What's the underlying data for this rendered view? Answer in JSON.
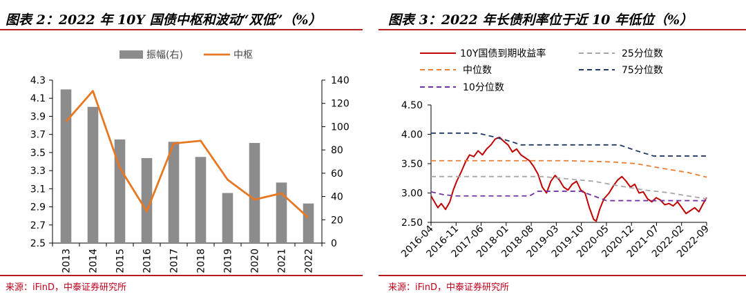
{
  "panels": {
    "left": {
      "title": "图表 2：2022 年 10Y 国债中枢和波动“双低”（%）",
      "source": "来源：iFinD，中泰证券研究所"
    },
    "right": {
      "title": "图表 3：2022 年长债利率位于近 10 年低位（%）",
      "source": "来源：iFinD，中泰证券研究所"
    }
  },
  "chart_data": [
    {
      "type": "bar+line",
      "title": "2022 年 10Y 国债中枢和波动“双低”（%）",
      "categories": [
        "2013",
        "2014",
        "2015",
        "2016",
        "2017",
        "2018",
        "2019",
        "2020",
        "2021",
        "2022"
      ],
      "series": [
        {
          "name": "振幅(右)",
          "kind": "bar",
          "axis": "right",
          "color": "#8c8c8c",
          "values": [
            132,
            117,
            89,
            73,
            87,
            74,
            43,
            86,
            52,
            34
          ]
        },
        {
          "name": "中枢",
          "kind": "line",
          "axis": "left",
          "color": "#e87722",
          "values": [
            3.84,
            4.18,
            3.33,
            2.85,
            3.6,
            3.63,
            3.2,
            2.98,
            3.05,
            2.78
          ]
        }
      ],
      "y_left": {
        "min": 2.5,
        "max": 4.3,
        "ticks": [
          "4.3",
          "4.1",
          "3.9",
          "3.7",
          "3.5",
          "3.3",
          "3.1",
          "2.9",
          "2.7",
          "2.5"
        ]
      },
      "y_right": {
        "min": 0,
        "max": 140,
        "ticks": [
          "140",
          "120",
          "100",
          "80",
          "60",
          "40",
          "20",
          "0"
        ]
      },
      "legend": [
        "振幅(右)",
        "中枢"
      ]
    },
    {
      "type": "line",
      "title": "2022 年长债利率位于近 10 年低位（%）",
      "x_range": [
        "2016-04",
        "2022-12"
      ],
      "x_ticks": [
        "2016-04",
        "2016-11",
        "2017-06",
        "2018-01",
        "2018-08",
        "2019-03",
        "2019-10",
        "2020-05",
        "2020-12",
        "2021-07",
        "2022-02",
        "2022-09"
      ],
      "y": {
        "min": 2.5,
        "max": 4.5,
        "ticks": [
          "4.50",
          "4.00",
          "3.50",
          "3.00",
          "2.50"
        ]
      },
      "legend": [
        "10Y国债到期收益率",
        "25分位数",
        "中位数",
        "75分位数",
        "10分位数"
      ],
      "series": [
        {
          "name": "10Y国债到期收益率",
          "color": "#c00000",
          "style": "solid",
          "points": [
            [
              0,
              2.95
            ],
            [
              0.4,
              2.85
            ],
            [
              0.8,
              2.75
            ],
            [
              1.2,
              2.82
            ],
            [
              1.7,
              2.72
            ],
            [
              2.2,
              2.85
            ],
            [
              2.6,
              3.05
            ],
            [
              3.0,
              3.2
            ],
            [
              3.5,
              3.35
            ],
            [
              4.0,
              3.52
            ],
            [
              4.5,
              3.65
            ],
            [
              5.0,
              3.62
            ],
            [
              5.5,
              3.72
            ],
            [
              6.0,
              3.65
            ],
            [
              6.5,
              3.75
            ],
            [
              7.0,
              3.82
            ],
            [
              7.5,
              3.92
            ],
            [
              8.0,
              3.95
            ],
            [
              8.5,
              3.88
            ],
            [
              9.0,
              3.82
            ],
            [
              9.5,
              3.7
            ],
            [
              10.0,
              3.75
            ],
            [
              10.5,
              3.65
            ],
            [
              11.0,
              3.6
            ],
            [
              11.5,
              3.55
            ],
            [
              12.0,
              3.45
            ],
            [
              12.5,
              3.32
            ],
            [
              13.0,
              3.1
            ],
            [
              13.5,
              3.0
            ],
            [
              14.0,
              3.2
            ],
            [
              14.5,
              3.3
            ],
            [
              15.0,
              3.22
            ],
            [
              15.5,
              3.1
            ],
            [
              16.0,
              3.05
            ],
            [
              16.5,
              3.15
            ],
            [
              17.0,
              3.2
            ],
            [
              17.5,
              3.05
            ],
            [
              18.0,
              3.0
            ],
            [
              18.5,
              2.75
            ],
            [
              19.0,
              2.55
            ],
            [
              19.3,
              2.52
            ],
            [
              19.7,
              2.72
            ],
            [
              20.2,
              2.9
            ],
            [
              20.8,
              3.0
            ],
            [
              21.3,
              3.12
            ],
            [
              21.8,
              3.22
            ],
            [
              22.3,
              3.28
            ],
            [
              22.8,
              3.2
            ],
            [
              23.3,
              3.1
            ],
            [
              23.8,
              3.15
            ],
            [
              24.3,
              3.0
            ],
            [
              24.8,
              3.02
            ],
            [
              25.3,
              2.9
            ],
            [
              25.8,
              2.85
            ],
            [
              26.3,
              2.92
            ],
            [
              26.8,
              2.88
            ],
            [
              27.3,
              2.8
            ],
            [
              27.8,
              2.82
            ],
            [
              28.3,
              2.78
            ],
            [
              28.8,
              2.85
            ],
            [
              29.3,
              2.75
            ],
            [
              29.8,
              2.65
            ],
            [
              30.3,
              2.7
            ],
            [
              30.8,
              2.75
            ],
            [
              31.3,
              2.68
            ],
            [
              31.8,
              2.82
            ],
            [
              32.2,
              2.92
            ]
          ]
        },
        {
          "name": "25分位数",
          "color": "#a6a6a6",
          "style": "dashed",
          "points": [
            [
              0,
              3.28
            ],
            [
              11.5,
              3.28
            ],
            [
              13.0,
              3.28
            ],
            [
              16.0,
              3.24
            ],
            [
              19.0,
              3.2
            ],
            [
              22.0,
              3.12
            ],
            [
              25.0,
              3.05
            ],
            [
              28.0,
              3.0
            ],
            [
              30.0,
              2.95
            ],
            [
              32.2,
              2.9
            ]
          ]
        },
        {
          "name": "中位数",
          "color": "#ed7d31",
          "style": "dashed",
          "points": [
            [
              0,
              3.55
            ],
            [
              16.0,
              3.55
            ],
            [
              21.0,
              3.53
            ],
            [
              24.0,
              3.5
            ],
            [
              27.0,
              3.42
            ],
            [
              30.0,
              3.35
            ],
            [
              32.2,
              3.27
            ]
          ]
        },
        {
          "name": "75分位数",
          "color": "#1f3864",
          "style": "dashed",
          "points": [
            [
              0,
              4.02
            ],
            [
              5.5,
              4.02
            ],
            [
              7.5,
              3.95
            ],
            [
              9.5,
              3.87
            ],
            [
              10.5,
              3.82
            ],
            [
              20.0,
              3.82
            ],
            [
              22.0,
              3.82
            ],
            [
              24.0,
              3.72
            ],
            [
              26.0,
              3.63
            ],
            [
              32.2,
              3.63
            ]
          ]
        },
        {
          "name": "10分位数",
          "color": "#7030a0",
          "style": "dashed",
          "points": [
            [
              0,
              3.02
            ],
            [
              1.5,
              2.97
            ],
            [
              3.0,
              2.95
            ],
            [
              11.5,
              2.95
            ],
            [
              12.5,
              3.03
            ],
            [
              17.5,
              3.03
            ],
            [
              19.0,
              2.95
            ],
            [
              20.5,
              2.87
            ],
            [
              32.2,
              2.87
            ]
          ]
        }
      ]
    }
  ]
}
